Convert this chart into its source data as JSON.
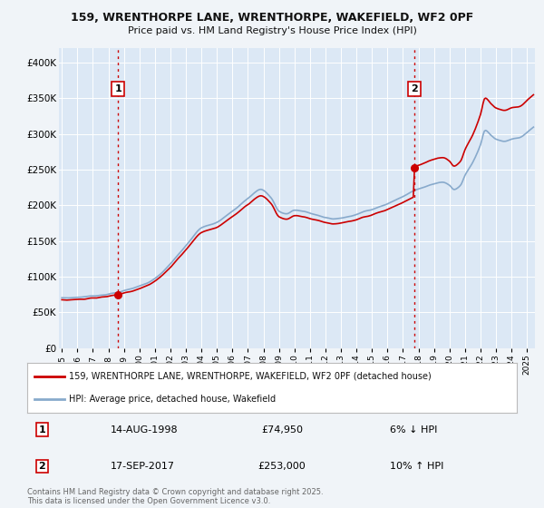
{
  "title_line1": "159, WRENTHORPE LANE, WRENTHORPE, WAKEFIELD, WF2 0PF",
  "title_line2": "Price paid vs. HM Land Registry's House Price Index (HPI)",
  "background_color": "#f0f4f8",
  "plot_bg_color": "#dce8f5",
  "grid_color": "#ffffff",
  "ylim": [
    0,
    420000
  ],
  "yticks": [
    0,
    50000,
    100000,
    150000,
    200000,
    250000,
    300000,
    350000,
    400000
  ],
  "ytick_labels": [
    "£0",
    "£50K",
    "£100K",
    "£150K",
    "£200K",
    "£250K",
    "£300K",
    "£350K",
    "£400K"
  ],
  "xmin": 1994.8,
  "xmax": 2025.5,
  "sale1_x": 1998.617,
  "sale1_y": 74950,
  "sale2_x": 2017.706,
  "sale2_y": 253000,
  "sale1_label": "1",
  "sale2_label": "2",
  "sale_color": "#cc0000",
  "hpi_color": "#88aacc",
  "vline_color": "#cc0000",
  "legend_label_price": "159, WRENTHORPE LANE, WRENTHORPE, WAKEFIELD, WF2 0PF (detached house)",
  "legend_label_hpi": "HPI: Average price, detached house, Wakefield",
  "footer": "Contains HM Land Registry data © Crown copyright and database right 2025.\nThis data is licensed under the Open Government Licence v3.0.",
  "table_rows": [
    {
      "num": "1",
      "date": "14-AUG-1998",
      "price": "£74,950",
      "hpi": "6% ↓ HPI"
    },
    {
      "num": "2",
      "date": "17-SEP-2017",
      "price": "£253,000",
      "hpi": "10% ↑ HPI"
    }
  ]
}
